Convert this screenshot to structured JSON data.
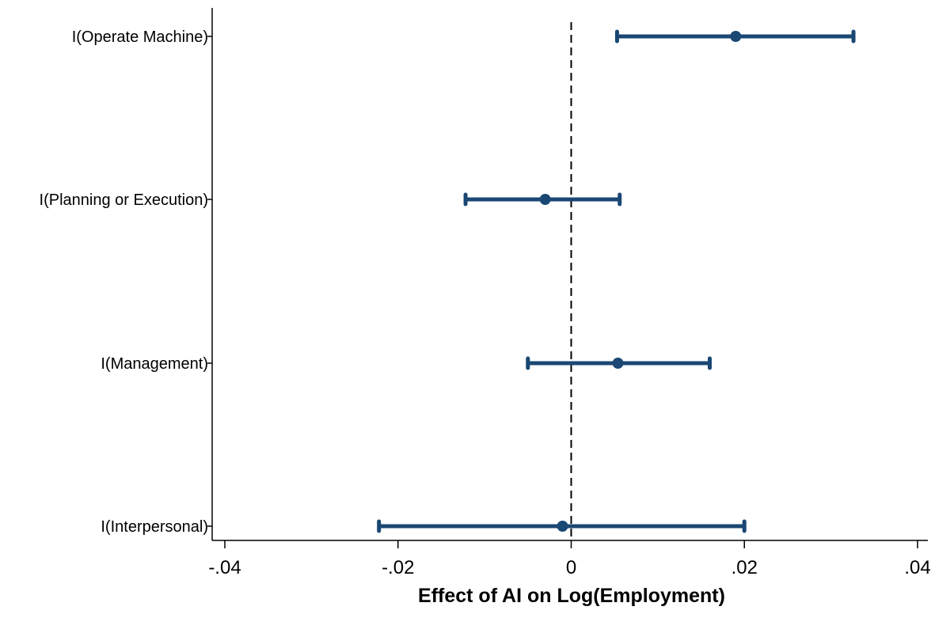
{
  "chart_data": {
    "type": "coefficient-plot",
    "title": "",
    "xlabel": "Effect of AI on Log(Employment)",
    "ylabel": "",
    "xlim": [
      -0.04,
      0.04
    ],
    "x_ticks": [
      {
        "value": -0.04,
        "label": "-.04"
      },
      {
        "value": -0.02,
        "label": "-.02"
      },
      {
        "value": 0,
        "label": "0"
      },
      {
        "value": 0.02,
        "label": ".02"
      },
      {
        "value": 0.04,
        "label": ".04"
      }
    ],
    "reference_line": {
      "value": 0,
      "style": "dashed"
    },
    "grid": false,
    "legend": "none",
    "color": "#1a4773",
    "categories": [
      "I(Operate Machine)",
      "I(Planning or Execution)",
      "I(Management)",
      "I(Interpersonal)"
    ],
    "estimates": [
      0.019,
      -0.003,
      0.0054,
      -0.001
    ],
    "ci_low": [
      0.0053,
      -0.0122,
      -0.005,
      -0.0222
    ],
    "ci_high": [
      0.0326,
      0.0056,
      0.016,
      0.02
    ]
  }
}
